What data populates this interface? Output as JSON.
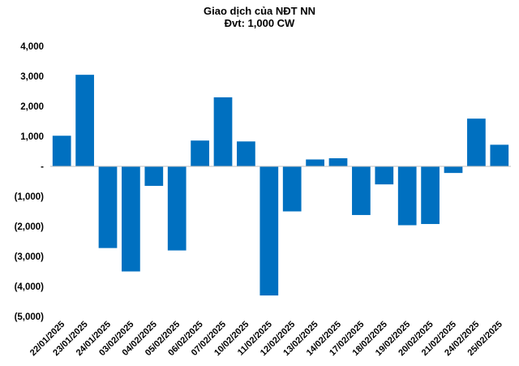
{
  "chart_data": {
    "type": "bar",
    "title": "Giao dịch của NĐT NN",
    "subtitle": "Đvt: 1,000 CW",
    "xlabel": "",
    "ylabel": "",
    "ylim": [
      -5000,
      4000
    ],
    "yticks": [
      4000,
      3000,
      2000,
      1000,
      0,
      -1000,
      -2000,
      -3000,
      -4000,
      -5000
    ],
    "ytick_labels": [
      "4,000",
      "3,000",
      "2,000",
      "1,000",
      "-",
      "(1,000)",
      "(2,000)",
      "(3,000)",
      "(4,000)",
      "(5,000)"
    ],
    "grid": false,
    "legend": "none",
    "bar_color": "#0070C0",
    "categories": [
      "22/01/2025",
      "23/01/2025",
      "24/01/2025",
      "03/02/2025",
      "04/02/2025",
      "05/02/2025",
      "06/02/2025",
      "07/02/2025",
      "10/02/2025",
      "11/02/2025",
      "12/02/2025",
      "13/02/2025",
      "14/02/2025",
      "17/02/2025",
      "18/02/2025",
      "19/02/2025",
      "20/02/2025",
      "21/02/2025",
      "24/02/2025",
      "25/02/2025"
    ],
    "values": [
      1020,
      3050,
      -2720,
      -3500,
      -650,
      -2800,
      860,
      2300,
      830,
      -4300,
      -1500,
      230,
      270,
      -1620,
      -600,
      -1960,
      -1920,
      -220,
      1590,
      720
    ]
  }
}
